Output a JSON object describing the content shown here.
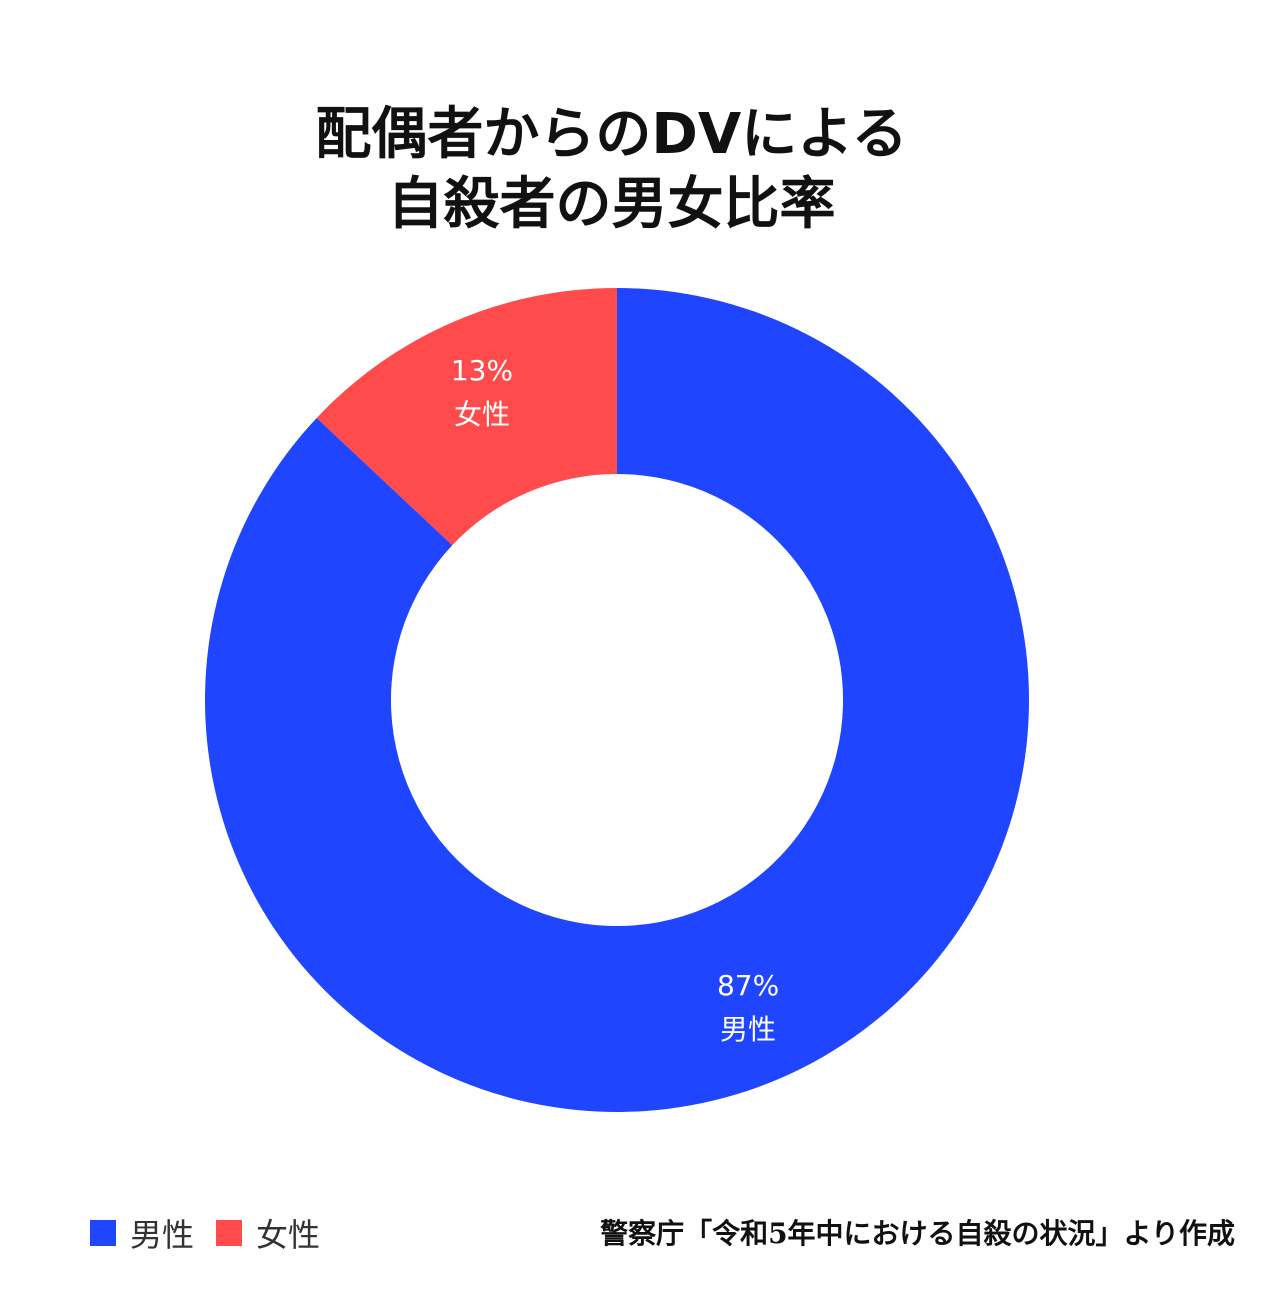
{
  "chart_data": {
    "type": "pie",
    "title_lines": [
      "配偶者からのDVによる",
      "自殺者の男女比率"
    ],
    "slices": [
      {
        "name": "女性",
        "value": 13,
        "percent_label": "13%",
        "color": "#ff4b4b"
      },
      {
        "name": "男性",
        "value": 87,
        "percent_label": "87%",
        "color": "#1f45ff"
      }
    ],
    "legend": [
      {
        "label": "男性",
        "color": "#1f45ff"
      },
      {
        "label": "女性",
        "color": "#ff4b4b"
      }
    ],
    "legend_placement": "bottom-left",
    "donut": true,
    "source": "警察庁「令和5年中における自殺の状況」より作成"
  }
}
